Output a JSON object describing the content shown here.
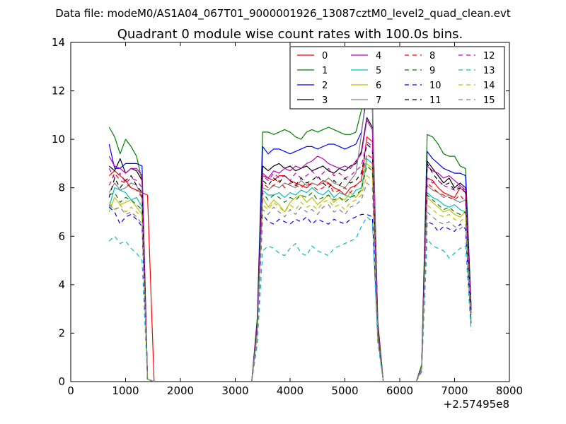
{
  "figure": {
    "suptitle": "Data file: modeM0/AS1A04_067T01_9000001926_13087cztM0_level2_quad_clean.evt"
  },
  "chart_data": {
    "type": "line",
    "title": "Quadrant 0 module wise count rates with 100.0s bins.",
    "xlabel": "",
    "ylabel": "",
    "x_offset_label": "+2.57495e8",
    "xlim": [
      0,
      8000
    ],
    "ylim": [
      0,
      14
    ],
    "xticks": [
      "0",
      "1000",
      "2000",
      "3000",
      "4000",
      "5000",
      "6000",
      "7000",
      "8000"
    ],
    "yticks": [
      "0",
      "2",
      "4",
      "6",
      "8",
      "10",
      "12",
      "14"
    ],
    "grid": false,
    "legend_position": "top-right",
    "segments": [
      {
        "x": [
          700,
          800,
          900,
          1000,
          1100,
          1200,
          1300,
          1400,
          1500
        ],
        "drop_to": 1520
      },
      {
        "x": [
          3300,
          3400,
          3500,
          3600,
          3700,
          3800,
          3900,
          4000,
          4100,
          4200,
          4300,
          4400,
          4500,
          4600,
          4700,
          4800,
          4900,
          5000,
          5100,
          5200,
          5300,
          5400,
          5500,
          5600,
          5700
        ]
      },
      {
        "x": [
          6300,
          6400,
          6500,
          6600,
          6700,
          6800,
          6900,
          7000,
          7100,
          7200,
          7300
        ]
      }
    ],
    "series": [
      {
        "name": "0",
        "color": "#ff0000",
        "dash": "solid",
        "values": [
          [
            8.5,
            8.7,
            8.5,
            8.3,
            8.0,
            7.9,
            7.8,
            7.7,
            0
          ],
          [
            0,
            2.2,
            8.5,
            8.4,
            8.3,
            8.5,
            8.5,
            8.3,
            8.2,
            8.1,
            8.0,
            8.2,
            8.1,
            8.3,
            8.2,
            8.0,
            7.9,
            7.7,
            8.0,
            8.1,
            8.3,
            10.1,
            9.9,
            2.0,
            0
          ],
          [
            0,
            0.6,
            8.4,
            8.3,
            8.0,
            7.8,
            7.7,
            7.6,
            8.0,
            7.8,
            2.8
          ]
        ]
      },
      {
        "name": "1",
        "color": "#008000",
        "dash": "solid",
        "values": [
          [
            10.5,
            10.1,
            9.4,
            10.0,
            9.7,
            9.3,
            8.3,
            0.1,
            0
          ],
          [
            0,
            2.6,
            10.3,
            10.3,
            10.2,
            10.3,
            10.4,
            10.3,
            10.1,
            10.0,
            10.3,
            10.4,
            10.3,
            10.4,
            10.5,
            10.4,
            10.3,
            10.2,
            10.2,
            10.3,
            11.2,
            12.2,
            11.3,
            2.5,
            0
          ],
          [
            0,
            0.7,
            10.2,
            10.1,
            9.8,
            9.4,
            9.3,
            9.3,
            8.9,
            8.8,
            3.2
          ]
        ]
      },
      {
        "name": "2",
        "color": "#0000ff",
        "dash": "solid",
        "values": [
          [
            9.8,
            8.8,
            8.8,
            9.0,
            9.0,
            9.0,
            8.9,
            0.1,
            0
          ],
          [
            0,
            2.4,
            9.7,
            9.4,
            9.6,
            9.6,
            9.5,
            9.4,
            9.5,
            9.6,
            9.7,
            9.7,
            9.6,
            9.7,
            9.8,
            9.8,
            9.7,
            9.6,
            9.7,
            9.8,
            10.3,
            11.8,
            11.7,
            2.3,
            0
          ],
          [
            0,
            0.6,
            9.5,
            9.2,
            9.0,
            8.8,
            8.7,
            8.6,
            8.6,
            8.5,
            3.1
          ]
        ]
      },
      {
        "name": "3",
        "color": "#000000",
        "dash": "solid",
        "values": [
          [
            8.9,
            8.7,
            9.2,
            8.6,
            8.8,
            8.7,
            8.3,
            0.1,
            0
          ],
          [
            0,
            2.3,
            8.9,
            8.7,
            8.9,
            9.0,
            8.8,
            8.9,
            8.7,
            8.8,
            8.9,
            8.7,
            8.8,
            8.9,
            8.7,
            8.6,
            8.8,
            8.7,
            8.9,
            9.0,
            9.5,
            10.9,
            10.5,
            2.2,
            0
          ],
          [
            0,
            0.6,
            9.1,
            8.8,
            8.5,
            8.2,
            8.4,
            8.0,
            8.2,
            8.0,
            3.0
          ]
        ]
      },
      {
        "name": "4",
        "color": "#bf00bf",
        "dash": "solid",
        "values": [
          [
            9.3,
            8.9,
            8.8,
            8.6,
            8.8,
            8.8,
            8.5,
            0.1,
            0
          ],
          [
            0,
            2.3,
            8.6,
            8.4,
            8.7,
            8.6,
            8.8,
            8.7,
            8.9,
            8.8,
            9.0,
            9.1,
            9.3,
            9.2,
            9.0,
            8.9,
            8.8,
            8.9,
            8.8,
            9.1,
            9.4,
            10.8,
            10.4,
            2.2,
            0
          ],
          [
            0,
            0.6,
            8.9,
            8.7,
            8.6,
            8.4,
            8.5,
            8.3,
            8.1,
            7.9,
            3.0
          ]
        ]
      },
      {
        "name": "5",
        "color": "#00bfbf",
        "dash": "solid",
        "values": [
          [
            7.2,
            8.0,
            7.9,
            7.8,
            7.5,
            7.6,
            7.2,
            0.1,
            0
          ],
          [
            0,
            2.0,
            7.9,
            7.7,
            7.7,
            7.8,
            7.6,
            7.8,
            7.7,
            7.9,
            7.8,
            8.0,
            7.8,
            7.7,
            7.9,
            7.6,
            7.8,
            7.7,
            7.6,
            7.9,
            8.0,
            9.2,
            9.0,
            2.0,
            0
          ],
          [
            0,
            0.5,
            7.8,
            7.6,
            7.5,
            7.3,
            7.2,
            7.3,
            7.1,
            7.0,
            2.6
          ]
        ]
      },
      {
        "name": "6",
        "color": "#bfbf00",
        "dash": "solid",
        "values": [
          [
            7.0,
            7.6,
            7.3,
            7.4,
            7.5,
            7.2,
            6.9,
            0.1,
            0
          ],
          [
            0,
            1.9,
            7.6,
            7.2,
            7.5,
            7.3,
            7.0,
            7.4,
            7.6,
            7.7,
            7.4,
            7.6,
            7.3,
            7.5,
            7.7,
            7.4,
            7.6,
            7.5,
            7.8,
            7.6,
            7.9,
            9.0,
            8.8,
            1.9,
            0
          ],
          [
            0,
            0.5,
            7.6,
            7.4,
            7.2,
            7.0,
            7.1,
            6.9,
            6.8,
            7.0,
            2.5
          ]
        ]
      },
      {
        "name": "7",
        "color": "#808080",
        "dash": "solid",
        "values": [
          [
            7.8,
            8.2,
            7.9,
            8.0,
            8.2,
            8.1,
            7.6,
            0.1,
            0
          ],
          [
            0,
            2.1,
            8.0,
            7.9,
            8.1,
            8.0,
            8.2,
            8.1,
            8.0,
            8.3,
            8.1,
            8.2,
            8.1,
            8.2,
            8.4,
            8.2,
            8.1,
            8.0,
            8.3,
            8.6,
            10.2,
            12.1,
            11.4,
            2.1,
            0
          ],
          [
            0,
            0.6,
            8.1,
            7.9,
            7.8,
            7.6,
            7.7,
            7.5,
            7.4,
            7.5,
            2.8
          ]
        ]
      },
      {
        "name": "8",
        "color": "#ff0000",
        "dash": "dashed",
        "values": [
          [
            8.1,
            8.6,
            8.3,
            8.2,
            8.0,
            7.9,
            7.6,
            0.1,
            0
          ],
          [
            0,
            2.1,
            8.2,
            8.0,
            8.1,
            8.3,
            8.0,
            8.2,
            8.1,
            8.0,
            8.2,
            8.1,
            7.9,
            8.0,
            8.2,
            7.8,
            7.9,
            8.0,
            7.8,
            8.1,
            8.3,
            9.4,
            9.2,
            2.0,
            0
          ],
          [
            0,
            0.5,
            8.2,
            8.0,
            7.8,
            7.7,
            7.6,
            7.5,
            7.7,
            7.4,
            2.7
          ]
        ]
      },
      {
        "name": "9",
        "color": "#008000",
        "dash": "dashed",
        "values": [
          [
            7.7,
            7.8,
            7.4,
            7.6,
            7.5,
            7.3,
            7.1,
            0.1,
            0
          ],
          [
            0,
            2.0,
            7.8,
            7.5,
            7.7,
            7.6,
            7.4,
            7.6,
            7.5,
            7.7,
            7.6,
            7.8,
            7.5,
            7.6,
            7.7,
            7.5,
            7.6,
            7.4,
            7.6,
            7.7,
            7.9,
            8.9,
            8.7,
            1.9,
            0
          ],
          [
            0,
            0.5,
            7.7,
            7.5,
            7.3,
            7.1,
            7.2,
            7.0,
            6.9,
            7.0,
            2.6
          ]
        ]
      },
      {
        "name": "10",
        "color": "#0000ff",
        "dash": "dashed",
        "values": [
          [
            7.2,
            7.0,
            6.5,
            6.8,
            6.9,
            6.7,
            6.4,
            0.1,
            0
          ],
          [
            0,
            1.8,
            6.9,
            6.6,
            6.5,
            6.7,
            6.6,
            6.5,
            6.7,
            6.6,
            6.8,
            6.5,
            6.7,
            6.6,
            6.5,
            6.7,
            6.6,
            6.5,
            6.7,
            6.8,
            6.9,
            6.9,
            6.8,
            1.8,
            0
          ],
          [
            0,
            0.5,
            6.6,
            6.5,
            6.2,
            6.4,
            6.3,
            6.2,
            6.5,
            6.3,
            2.4
          ]
        ]
      },
      {
        "name": "11",
        "color": "#000000",
        "dash": "dashed",
        "values": [
          [
            7.6,
            8.4,
            8.0,
            8.3,
            8.5,
            8.1,
            7.8,
            0.1,
            0
          ],
          [
            0,
            2.2,
            8.3,
            8.1,
            8.4,
            8.2,
            8.5,
            8.3,
            8.1,
            8.4,
            8.2,
            8.3,
            8.5,
            8.2,
            8.0,
            8.3,
            8.1,
            8.4,
            8.2,
            8.3,
            8.6,
            9.8,
            9.6,
            2.1,
            0
          ],
          [
            0,
            0.6,
            9.0,
            8.6,
            8.3,
            8.1,
            8.2,
            7.9,
            8.0,
            7.8,
            2.9
          ]
        ]
      },
      {
        "name": "12",
        "color": "#bf00bf",
        "dash": "dashed",
        "values": [
          [
            8.8,
            8.4,
            8.6,
            8.2,
            8.4,
            8.3,
            8.0,
            0.1,
            0
          ],
          [
            0,
            2.2,
            8.5,
            8.3,
            8.6,
            8.4,
            8.5,
            8.3,
            8.6,
            8.4,
            8.5,
            8.7,
            8.4,
            8.6,
            8.8,
            8.5,
            8.6,
            8.4,
            8.5,
            8.7,
            8.9,
            9.9,
            9.7,
            2.1,
            0
          ],
          [
            0,
            0.6,
            8.4,
            8.2,
            8.3,
            8.1,
            8.0,
            7.9,
            8.1,
            7.8,
            2.9
          ]
        ]
      },
      {
        "name": "13",
        "color": "#00bfbf",
        "dash": "dashed",
        "values": [
          [
            5.8,
            6.0,
            5.7,
            5.8,
            5.5,
            5.3,
            5.0,
            0.1,
            0
          ],
          [
            0,
            1.5,
            5.4,
            5.6,
            5.5,
            5.3,
            5.2,
            5.5,
            5.7,
            5.3,
            5.2,
            5.6,
            5.4,
            5.3,
            5.2,
            5.5,
            5.6,
            5.7,
            5.8,
            5.9,
            6.4,
            6.8,
            6.6,
            1.6,
            0
          ],
          [
            0,
            0.4,
            5.9,
            5.6,
            5.5,
            5.4,
            5.1,
            5.3,
            5.5,
            5.6,
            2.1
          ]
        ]
      },
      {
        "name": "14",
        "color": "#bfbf00",
        "dash": "dashed",
        "values": [
          [
            7.4,
            7.1,
            7.3,
            7.0,
            7.2,
            7.0,
            6.8,
            0.1,
            0
          ],
          [
            0,
            1.9,
            7.3,
            7.1,
            7.4,
            7.2,
            7.0,
            7.3,
            7.1,
            7.4,
            7.2,
            7.3,
            7.1,
            7.4,
            7.5,
            7.2,
            7.3,
            7.1,
            7.4,
            7.5,
            7.7,
            8.5,
            8.3,
            1.9,
            0
          ],
          [
            0,
            0.5,
            7.3,
            7.1,
            6.9,
            6.8,
            6.9,
            6.7,
            6.6,
            6.8,
            2.5
          ]
        ]
      },
      {
        "name": "15",
        "color": "#808080",
        "dash": "dashed",
        "values": [
          [
            7.3,
            7.1,
            7.2,
            6.9,
            7.0,
            6.8,
            6.5,
            0.1,
            0
          ],
          [
            0,
            1.8,
            7.1,
            6.9,
            7.2,
            7.0,
            6.8,
            7.1,
            6.9,
            7.2,
            7.0,
            7.1,
            6.9,
            7.2,
            7.3,
            7.0,
            7.1,
            6.9,
            7.2,
            7.3,
            7.5,
            8.2,
            8.0,
            1.8,
            0
          ],
          [
            0,
            0.5,
            7.0,
            6.8,
            6.6,
            6.5,
            6.6,
            6.4,
            6.3,
            6.5,
            2.4
          ]
        ]
      }
    ]
  }
}
